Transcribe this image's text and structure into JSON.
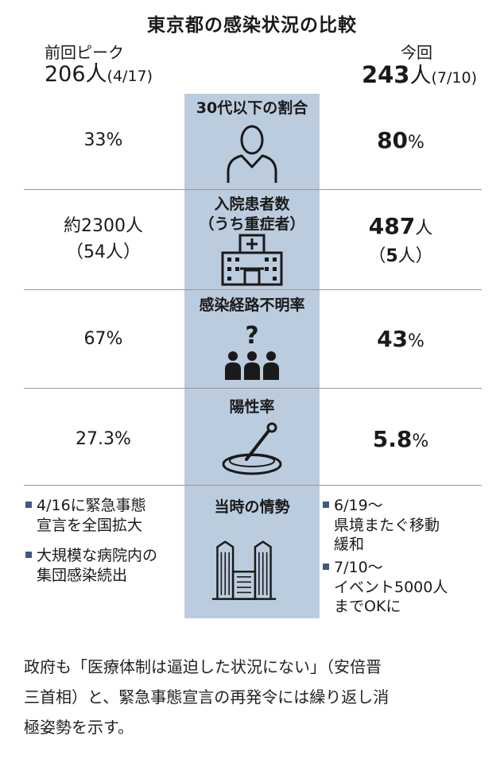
{
  "chart_data": {
    "type": "table",
    "title": "東京都の感染状況の比較",
    "columns": {
      "left": {
        "label": "前回ピーク",
        "count": "206",
        "unit": "人",
        "date": "(4/17)"
      },
      "right": {
        "label": "今回",
        "count": "243",
        "unit": "人",
        "date": "(7/10)"
      }
    },
    "rows": [
      {
        "category": "30代以下の割合",
        "left": {
          "main": "33",
          "unit": "%"
        },
        "right": {
          "main": "80",
          "unit": "%"
        },
        "icon": "person-icon"
      },
      {
        "category_line1": "入院患者数",
        "category_line2": "（うち重症者）",
        "left": {
          "prefix": "約",
          "main": "2300",
          "unit": "人",
          "sub": "（54人）"
        },
        "right": {
          "main": "487",
          "unit": "人",
          "sub_pre": "（",
          "sub_num": "5",
          "sub_post": "人）"
        },
        "icon": "hospital-icon"
      },
      {
        "category": "感染経路不明率",
        "left": {
          "main": "67",
          "unit": "%"
        },
        "right": {
          "main": "43",
          "unit": "%"
        },
        "icon": "unknown-people-icon"
      },
      {
        "category": "陽性率",
        "left": {
          "main": "27.3",
          "unit": "%"
        },
        "right": {
          "main": "5.8",
          "unit": "%"
        },
        "icon": "petri-dish-icon"
      },
      {
        "category": "当時の情勢",
        "left_bullets": [
          {
            "l1": "4/16に緊急事態",
            "l2": "宣言を全国拡大"
          },
          {
            "l1": "大規模な病院内の",
            "l2": "集団感染続出"
          }
        ],
        "right_bullets": [
          {
            "l1": "6/19～",
            "l2": "県境またぐ移動",
            "l3": "緩和"
          },
          {
            "l1": "7/10～",
            "l2": "イベント5000人",
            "l3": "までOKに"
          }
        ],
        "icon": "buildings-icon"
      }
    ]
  },
  "colors": {
    "band": "#bcccdf",
    "bullet": "#3b5a8a",
    "text": "#1a1a1a"
  },
  "note": {
    "line1": "政府も「医療体制は逼迫した状況にない」（安倍晋",
    "line2": "三首相）と、緊急事態宣言の再発令には繰り返し消",
    "line3": "極姿勢を示す。"
  }
}
